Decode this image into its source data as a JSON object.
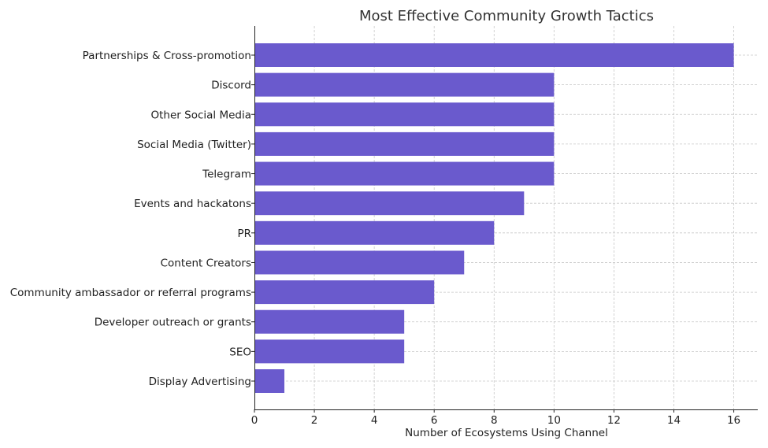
{
  "chart_data": {
    "type": "bar",
    "orientation": "horizontal",
    "title": "Most Effective Community Growth Tactics",
    "xlabel": "Number of Ecosystems Using Channel",
    "ylabel": "",
    "categories": [
      "Partnerships & Cross-promotion",
      "Discord",
      "Other Social Media",
      "Social Media (Twitter)",
      "Telegram",
      "Events and hackatons",
      "PR",
      "Content Creators",
      "Community ambassador or referral programs",
      "Developer outreach or grants",
      "SEO",
      "Display Advertising"
    ],
    "values": [
      16,
      10,
      10,
      10,
      10,
      9,
      8,
      7,
      6,
      5,
      5,
      1
    ],
    "xlim": [
      0,
      16.8
    ],
    "xticks": [
      0,
      2,
      4,
      6,
      8,
      10,
      12,
      14,
      16
    ],
    "grid": true,
    "bar_color": "#6a5acd"
  }
}
